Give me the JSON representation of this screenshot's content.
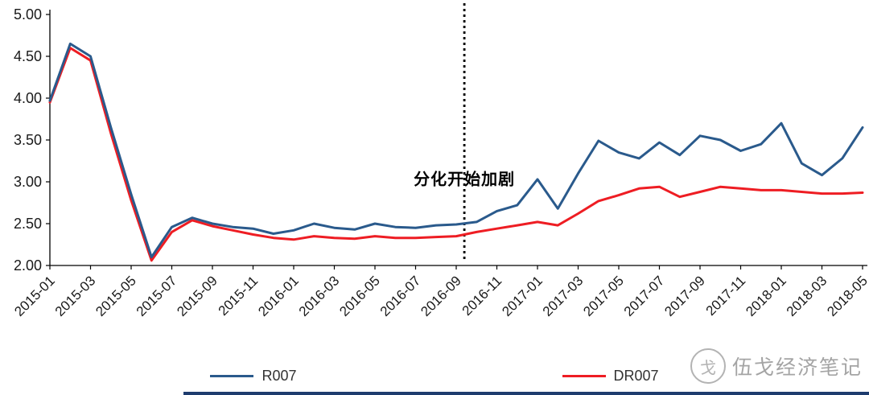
{
  "chart_data": {
    "type": "line",
    "title": "",
    "categories": [
      "2015-01",
      "2015-02",
      "2015-03",
      "2015-04",
      "2015-05",
      "2015-06",
      "2015-07",
      "2015-08",
      "2015-09",
      "2015-10",
      "2015-11",
      "2015-12",
      "2016-01",
      "2016-02",
      "2016-03",
      "2016-04",
      "2016-05",
      "2016-06",
      "2016-07",
      "2016-08",
      "2016-09",
      "2016-10",
      "2016-11",
      "2016-12",
      "2017-01",
      "2017-02",
      "2017-03",
      "2017-04",
      "2017-05",
      "2017-06",
      "2017-07",
      "2017-08",
      "2017-09",
      "2017-10",
      "2017-11",
      "2017-12",
      "2018-01",
      "2018-02",
      "2018-03",
      "2018-04",
      "2018-05"
    ],
    "series": [
      {
        "name": "R007",
        "color": "#2a5a8c",
        "values": [
          3.97,
          4.65,
          4.5,
          3.65,
          2.85,
          2.1,
          2.46,
          2.57,
          2.5,
          2.46,
          2.44,
          2.38,
          2.42,
          2.5,
          2.45,
          2.43,
          2.5,
          2.46,
          2.45,
          2.48,
          2.49,
          2.52,
          2.65,
          2.72,
          3.03,
          2.68,
          3.1,
          3.49,
          3.35,
          3.28,
          3.47,
          3.32,
          3.55,
          3.5,
          3.37,
          3.45,
          3.7,
          3.22,
          3.08,
          3.28,
          3.65
        ]
      },
      {
        "name": "DR007",
        "color": "#ee1d23",
        "values": [
          3.95,
          4.6,
          4.45,
          3.58,
          2.78,
          2.06,
          2.4,
          2.54,
          2.47,
          2.42,
          2.37,
          2.33,
          2.31,
          2.35,
          2.33,
          2.32,
          2.35,
          2.33,
          2.33,
          2.34,
          2.35,
          2.4,
          2.44,
          2.48,
          2.52,
          2.48,
          2.62,
          2.77,
          2.84,
          2.92,
          2.94,
          2.82,
          2.88,
          2.94,
          2.92,
          2.9,
          2.9,
          2.88,
          2.86,
          2.86,
          2.87
        ]
      }
    ],
    "ylim": [
      2.0,
      5.0
    ],
    "ytick_step": 0.5,
    "ytick_labels": [
      "2.00",
      "2.50",
      "3.00",
      "3.50",
      "4.00",
      "4.50",
      "5.00"
    ],
    "xtick_every": 2,
    "grid": false,
    "legend_position": "bottom",
    "annotation": {
      "text": "分化开始加剧",
      "x_index": 20.4,
      "y_value": 3.05
    },
    "vline_x_index": 20.4,
    "axis_color": "#000000"
  },
  "watermark": {
    "text": "伍戈经济笔记",
    "logo_glyph": "戈"
  }
}
